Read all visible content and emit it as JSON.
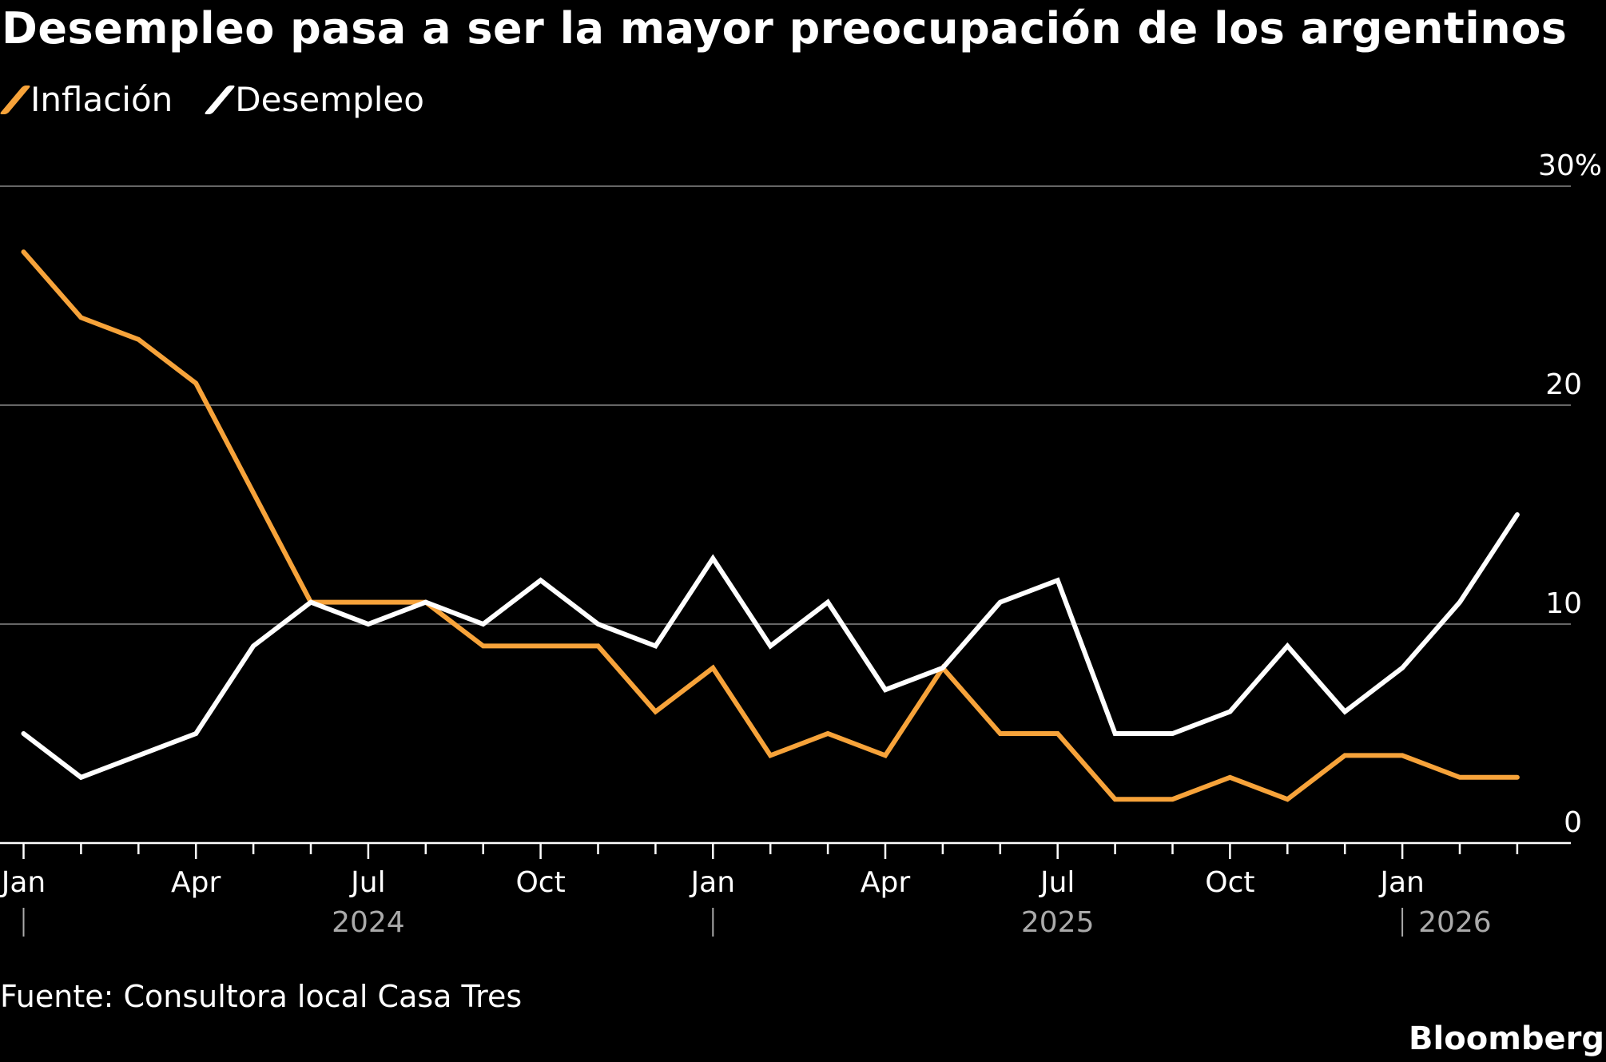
{
  "chart_data": {
    "type": "line",
    "title": "Desempleo pasa a ser la mayor preocupación de los argentinos",
    "source": "Fuente: Consultora local Casa Tres",
    "brand": "Bloomberg",
    "x": [
      "2024-01",
      "2024-02",
      "2024-03",
      "2024-04",
      "2024-05",
      "2024-06",
      "2024-07",
      "2024-08",
      "2024-09",
      "2024-10",
      "2024-11",
      "2024-12",
      "2025-01",
      "2025-02",
      "2025-03",
      "2025-04",
      "2025-05",
      "2025-06",
      "2025-07",
      "2025-08",
      "2025-09",
      "2025-10",
      "2025-11",
      "2025-12",
      "2026-01",
      "2026-02",
      "2026-03"
    ],
    "series": [
      {
        "name": "Inflación",
        "color": "#f7a33a",
        "values": [
          27,
          24,
          23,
          21,
          16,
          11,
          11,
          11,
          9,
          9,
          9,
          6,
          8,
          4,
          5,
          4,
          8,
          5,
          5,
          2,
          2,
          3,
          2,
          4,
          4,
          3,
          3
        ]
      },
      {
        "name": "Desempleo",
        "color": "#ffffff",
        "values": [
          5,
          3,
          4,
          5,
          9,
          11,
          10,
          11,
          10,
          12,
          10,
          9,
          13,
          9,
          11,
          7,
          8,
          11,
          12,
          5,
          5,
          6,
          9,
          6,
          8,
          11,
          15
        ]
      }
    ],
    "ylim": [
      0,
      30
    ],
    "y_ticks": [
      "0",
      "10",
      "20",
      "30%"
    ],
    "y_tick_values": [
      0,
      10,
      20,
      30
    ],
    "x_tick_labels": [
      {
        "month_index": 0,
        "label": "Jan"
      },
      {
        "month_index": 3,
        "label": "Apr"
      },
      {
        "month_index": 6,
        "label": "Jul"
      },
      {
        "month_index": 9,
        "label": "Oct"
      },
      {
        "month_index": 12,
        "label": "Jan"
      },
      {
        "month_index": 15,
        "label": "Apr"
      },
      {
        "month_index": 18,
        "label": "Jul"
      },
      {
        "month_index": 21,
        "label": "Oct"
      },
      {
        "month_index": 24,
        "label": "Jan"
      }
    ],
    "year_labels": [
      {
        "month_index": 6,
        "label": "2024"
      },
      {
        "month_index": 18,
        "label": "2025"
      },
      {
        "month_index": 24,
        "label": "2026"
      }
    ],
    "grid": true,
    "y_axis_side": "right",
    "legend_position": "top-left"
  }
}
